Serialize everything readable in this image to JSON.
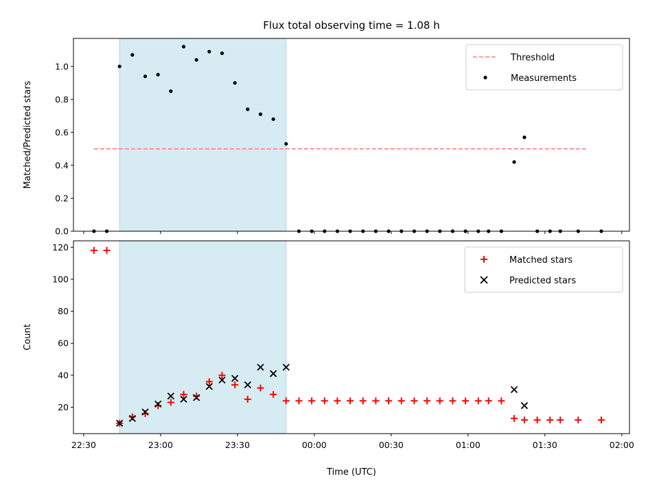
{
  "chart_data": [
    {
      "type": "scatter",
      "title": "Flux total observing time = 1.08 h",
      "ylabel": "Matched/Predicted stars",
      "xlabel": "",
      "xlim": [
        "22:26",
        "02:03"
      ],
      "ylim": [
        0,
        1.17
      ],
      "yticks": [
        "0.0",
        "0.2",
        "0.4",
        "0.6",
        "0.8",
        "1.0"
      ],
      "shaded_span": [
        "22:44",
        "23:49"
      ],
      "legend_position": "top-right",
      "series": [
        {
          "name": "Threshold",
          "style": "dashed-line",
          "color": "#ff7f7f",
          "x": [
            "22:34",
            "01:46"
          ],
          "y": [
            0.5,
            0.5
          ]
        },
        {
          "name": "Measurements",
          "style": "dot",
          "color": "#000000",
          "x": [
            "22:34",
            "22:39",
            "22:44",
            "22:49",
            "22:54",
            "22:59",
            "23:04",
            "23:09",
            "23:14",
            "23:19",
            "23:24",
            "23:29",
            "23:34",
            "23:39",
            "23:44",
            "23:49",
            "23:54",
            "23:59",
            "00:04",
            "00:09",
            "00:14",
            "00:19",
            "00:24",
            "00:29",
            "00:34",
            "00:39",
            "00:44",
            "00:49",
            "00:54",
            "00:59",
            "01:04",
            "01:08",
            "01:13",
            "01:18",
            "01:22",
            "01:27",
            "01:32",
            "01:36",
            "01:43",
            "01:52"
          ],
          "y": [
            0,
            0,
            1.0,
            1.07,
            0.94,
            0.95,
            0.85,
            1.12,
            1.04,
            1.09,
            1.08,
            0.9,
            0.74,
            0.71,
            0.68,
            0.53,
            0,
            0,
            0,
            0,
            0,
            0,
            0,
            0,
            0,
            0,
            0,
            0,
            0,
            0,
            0,
            0,
            0,
            0.42,
            0.57,
            0,
            0,
            0,
            0,
            0
          ]
        }
      ]
    },
    {
      "type": "scatter",
      "title": "",
      "ylabel": "Count",
      "xlabel": "Time (UTC)",
      "xlim": [
        "22:26",
        "02:03"
      ],
      "ylim": [
        3.5,
        124
      ],
      "xticks": [
        "22:30",
        "23:00",
        "23:30",
        "00:00",
        "00:30",
        "01:00",
        "01:30",
        "02:00"
      ],
      "yticks": [
        "20",
        "40",
        "60",
        "80",
        "100",
        "120"
      ],
      "shaded_span": [
        "22:44",
        "23:49"
      ],
      "legend_position": "top-right",
      "series": [
        {
          "name": "Matched stars",
          "style": "plus",
          "color": "#ff0000",
          "x": [
            "22:34",
            "22:39",
            "22:44",
            "22:49",
            "22:54",
            "22:59",
            "23:04",
            "23:09",
            "23:14",
            "23:19",
            "23:24",
            "23:29",
            "23:34",
            "23:39",
            "23:44",
            "23:49",
            "23:54",
            "23:59",
            "00:04",
            "00:09",
            "00:14",
            "00:19",
            "00:24",
            "00:29",
            "00:34",
            "00:39",
            "00:44",
            "00:49",
            "00:54",
            "00:59",
            "01:04",
            "01:08",
            "01:13",
            "01:18",
            "01:22",
            "01:27",
            "01:32",
            "01:36",
            "01:43",
            "01:52"
          ],
          "y": [
            118,
            118,
            10,
            14,
            16,
            21,
            23,
            28,
            27,
            36,
            40,
            34,
            25,
            32,
            28,
            24,
            24,
            24,
            24,
            24,
            24,
            24,
            24,
            24,
            24,
            24,
            24,
            24,
            24,
            24,
            24,
            24,
            24,
            13,
            12,
            12,
            12,
            12,
            12,
            12
          ]
        },
        {
          "name": "Predicted stars",
          "style": "x",
          "color": "#000000",
          "x": [
            "22:44",
            "22:49",
            "22:54",
            "22:59",
            "23:04",
            "23:09",
            "23:14",
            "23:19",
            "23:24",
            "23:29",
            "23:34",
            "23:39",
            "23:44",
            "23:49",
            "01:18",
            "01:22"
          ],
          "y": [
            10,
            13,
            17,
            22,
            27,
            25,
            26,
            33,
            37,
            38,
            34,
            45,
            41,
            45,
            31,
            21
          ]
        }
      ]
    }
  ]
}
